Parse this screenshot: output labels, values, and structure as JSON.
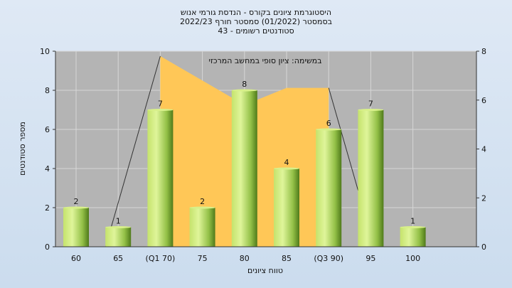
{
  "chart_data": {
    "type": "bar",
    "title_lines": [
      "היסטוגרמת ציונים בקורס - הנדסת גורמי אנוש",
      "בסמסטר  (01/2022)  סמסטר חורף 2022/23",
      "סטודנטים רשומים - 43"
    ],
    "annotation": "במשימה: ציון סופי במחשב המרכזי",
    "xlabel": "טווח ציונים",
    "ylabel": "מספר סטודנטים",
    "categories": [
      "60",
      "65",
      "(Q1 70)",
      "75",
      "80",
      "85",
      "(Q3 90)",
      "95",
      "100"
    ],
    "values": [
      2,
      1,
      7,
      2,
      8,
      4,
      6,
      7,
      1
    ],
    "ylim": [
      0,
      10
    ],
    "yticks": [
      0,
      2,
      4,
      6,
      8,
      10
    ],
    "y2lim": [
      0,
      8
    ],
    "y2ticks": [
      0,
      2,
      4,
      6,
      8
    ],
    "background_area": {
      "x": [
        2,
        4,
        5,
        6
      ],
      "y": [
        7.8,
        5.8,
        6.5,
        6.5
      ],
      "color": "#ffc757"
    },
    "gray_lines": [
      {
        "from": [
          0.7,
          0
        ],
        "to": [
          2,
          7.8
        ]
      },
      {
        "from": [
          6,
          6.5
        ],
        "to": [
          6.7,
          2.3
        ]
      }
    ],
    "colors": {
      "bar_light": "#d8f08a",
      "bar_mid": "#93c047",
      "bar_dark": "#4f7a1a",
      "plot_bg": "#b4b4b4",
      "grid": "#d6d6d6"
    },
    "grid": true
  }
}
